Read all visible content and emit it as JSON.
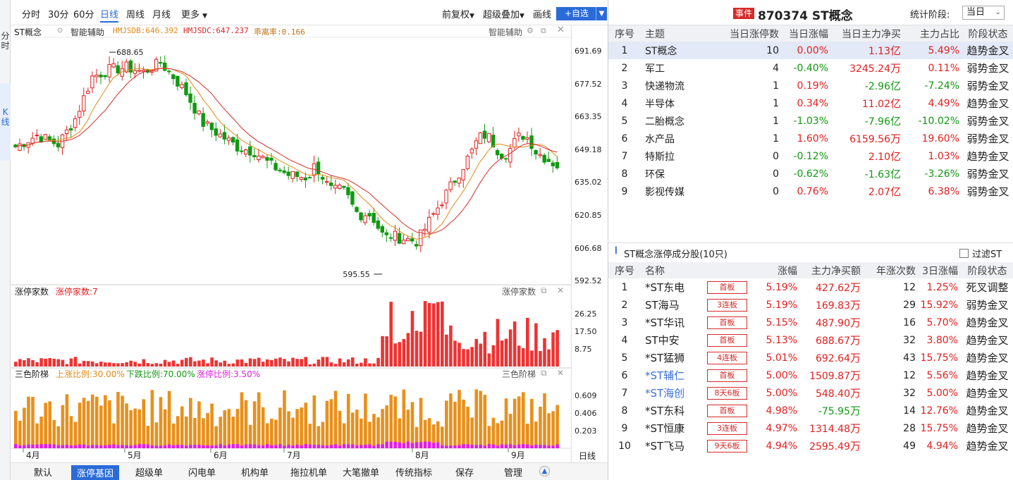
{
  "sidebar": {
    "tabs": [
      "分时",
      "K线"
    ]
  },
  "toolbar": {
    "periods": [
      "分时",
      "30分",
      "60分",
      "日线",
      "周线",
      "月线",
      "更多"
    ],
    "active_period": "日线",
    "adjust": "前复权",
    "overlay": "超级叠加",
    "draw": "画线",
    "add": "+自选"
  },
  "main_chart": {
    "name": "ST概念",
    "assist": "智能辅助",
    "hmjsdb": "HMJSDB:646.392",
    "hmjsdc": "HMJSDC:647.237",
    "deviation": "乖离率:0.166",
    "assist_right": "智能辅助",
    "high_label": "688.65",
    "low_label": "595.55",
    "y_ticks": [
      "691.69",
      "677.52",
      "663.35",
      "649.18",
      "635.02",
      "620.85",
      "606.68",
      "592.52"
    ],
    "months": [
      "4月",
      "5月",
      "6月",
      "7月",
      "8月",
      "9月"
    ],
    "colors": {
      "up": "#e02020",
      "down": "#119911",
      "ma1": "#e28a18",
      "ma2": "#d42a2a"
    }
  },
  "limit_pane": {
    "title": "涨停家数",
    "value": "涨停家数:7",
    "title_right": "涨停家数",
    "y_ticks": [
      "26.25",
      "17.50",
      "8.75"
    ],
    "color": "#ee3333"
  },
  "ladder_pane": {
    "title": "三色阶梯",
    "up": "上涨比例:30.00%",
    "down": "下跌比例:70.00%",
    "limit": "涨停比例:3.50%",
    "title_right": "三色阶梯",
    "y_ticks": [
      "0.609",
      "0.406",
      "0.203"
    ],
    "colors": {
      "orange": "#e8901c",
      "magenta": "#e020e0"
    }
  },
  "axis_bottom_label": "日线",
  "bottom_tabs": [
    "默认",
    "涨停基因",
    "超级单",
    "闪电单",
    "机构单",
    "拖拉机单",
    "大笔撤单",
    "传统指标",
    "保存",
    "管理"
  ],
  "active_bottom_tab": "涨停基因",
  "panel": {
    "event_badge": "事件",
    "code": "870374",
    "name": "ST概念",
    "stat_label": "统计阶段:",
    "stat_value": "当日",
    "themes_headers": [
      "序号",
      "主题",
      "当日涨停数",
      "当日涨幅",
      "当日主力净买",
      "主力占比",
      "阶段状态"
    ],
    "themes": [
      {
        "no": "1",
        "name": "ST概念",
        "limit": "10",
        "chg": "0.00%",
        "net": "1.13",
        "unit": "亿",
        "ratio": "5.49%",
        "state": "趋势金叉"
      },
      {
        "no": "2",
        "name": "军工",
        "limit": "4",
        "chg": "-0.40%",
        "net": "3245.24",
        "unit": "万",
        "ratio": "0.11%",
        "state": "弱势金叉"
      },
      {
        "no": "3",
        "name": "快递物流",
        "limit": "1",
        "chg": "0.19%",
        "net": "-2.96",
        "unit": "亿",
        "ratio": "-7.24%",
        "state": "弱势金叉"
      },
      {
        "no": "4",
        "name": "半导体",
        "limit": "1",
        "chg": "0.34%",
        "net": "11.02",
        "unit": "亿",
        "ratio": "4.49%",
        "state": "趋势金叉"
      },
      {
        "no": "5",
        "name": "二胎概念",
        "limit": "1",
        "chg": "-1.03%",
        "net": "-7.96",
        "unit": "亿",
        "ratio": "-10.02%",
        "state": "弱势金叉"
      },
      {
        "no": "6",
        "name": "水产品",
        "limit": "1",
        "chg": "1.60%",
        "net": "6159.56",
        "unit": "万",
        "ratio": "19.60%",
        "state": "弱势金叉"
      },
      {
        "no": "7",
        "name": "特斯拉",
        "limit": "0",
        "chg": "-0.12%",
        "net": "2.10",
        "unit": "亿",
        "ratio": "1.03%",
        "state": "趋势金叉"
      },
      {
        "no": "8",
        "name": "环保",
        "limit": "0",
        "chg": "-0.62%",
        "net": "-1.63",
        "unit": "亿",
        "ratio": "-3.26%",
        "state": "弱势金叉"
      },
      {
        "no": "9",
        "name": "影视传媒",
        "limit": "0",
        "chg": "0.76%",
        "net": "2.07",
        "unit": "亿",
        "ratio": "6.38%",
        "state": "弱势金叉"
      }
    ],
    "sub_title": "ST概念涨停成分股(10只)",
    "filter_st": "过滤ST",
    "stocks_headers": [
      "序号",
      "名称",
      "",
      "涨幅",
      "主力净买额",
      "年涨次数",
      "3日涨幅",
      "阶段状态"
    ],
    "stocks": [
      {
        "no": "1",
        "name": "*ST东电",
        "tag": "首板",
        "chg": "5.19%",
        "net": "427.62",
        "unit": "万",
        "years": "12",
        "d3": "1.25%",
        "state": "死叉调整",
        "hl": false
      },
      {
        "no": "2",
        "name": "ST海马",
        "tag": "3连板",
        "chg": "5.19%",
        "net": "169.83",
        "unit": "万",
        "years": "29",
        "d3": "15.92%",
        "state": "弱势金叉",
        "hl": false
      },
      {
        "no": "3",
        "name": "*ST华讯",
        "tag": "首板",
        "chg": "5.15%",
        "net": "487.90",
        "unit": "万",
        "years": "16",
        "d3": "5.70%",
        "state": "趋势金叉",
        "hl": false
      },
      {
        "no": "4",
        "name": "ST中安",
        "tag": "首板",
        "chg": "5.13%",
        "net": "688.67",
        "unit": "万",
        "years": "32",
        "d3": "3.80%",
        "state": "趋势金叉",
        "hl": false
      },
      {
        "no": "5",
        "name": "*ST猛狮",
        "tag": "4连板",
        "chg": "5.01%",
        "net": "692.64",
        "unit": "万",
        "years": "43",
        "d3": "15.75%",
        "state": "趋势金叉",
        "hl": false
      },
      {
        "no": "6",
        "name": "*ST辅仁",
        "tag": "首板",
        "chg": "5.00%",
        "net": "1509.87",
        "unit": "万",
        "years": "12",
        "d3": "5.56%",
        "state": "趋势金叉",
        "hl": true
      },
      {
        "no": "7",
        "name": "*ST海创",
        "tag": "8天6板",
        "chg": "5.00%",
        "net": "548.40",
        "unit": "万",
        "years": "32",
        "d3": "5.00%",
        "state": "趋势金叉",
        "hl": true
      },
      {
        "no": "8",
        "name": "*ST东科",
        "tag": "首板",
        "chg": "4.98%",
        "net": "-75.95",
        "unit": "万",
        "years": "14",
        "d3": "12.76%",
        "state": "趋势金叉",
        "hl": false
      },
      {
        "no": "9",
        "name": "*ST恒康",
        "tag": "3连板",
        "chg": "4.97%",
        "net": "1314.48",
        "unit": "万",
        "years": "28",
        "d3": "15.75%",
        "state": "趋势金叉",
        "hl": false
      },
      {
        "no": "10",
        "name": "*ST飞马",
        "tag": "9天6板",
        "chg": "4.94%",
        "net": "2595.49",
        "unit": "万",
        "years": "49",
        "d3": "4.94%",
        "state": "趋势金叉",
        "hl": false
      }
    ]
  }
}
